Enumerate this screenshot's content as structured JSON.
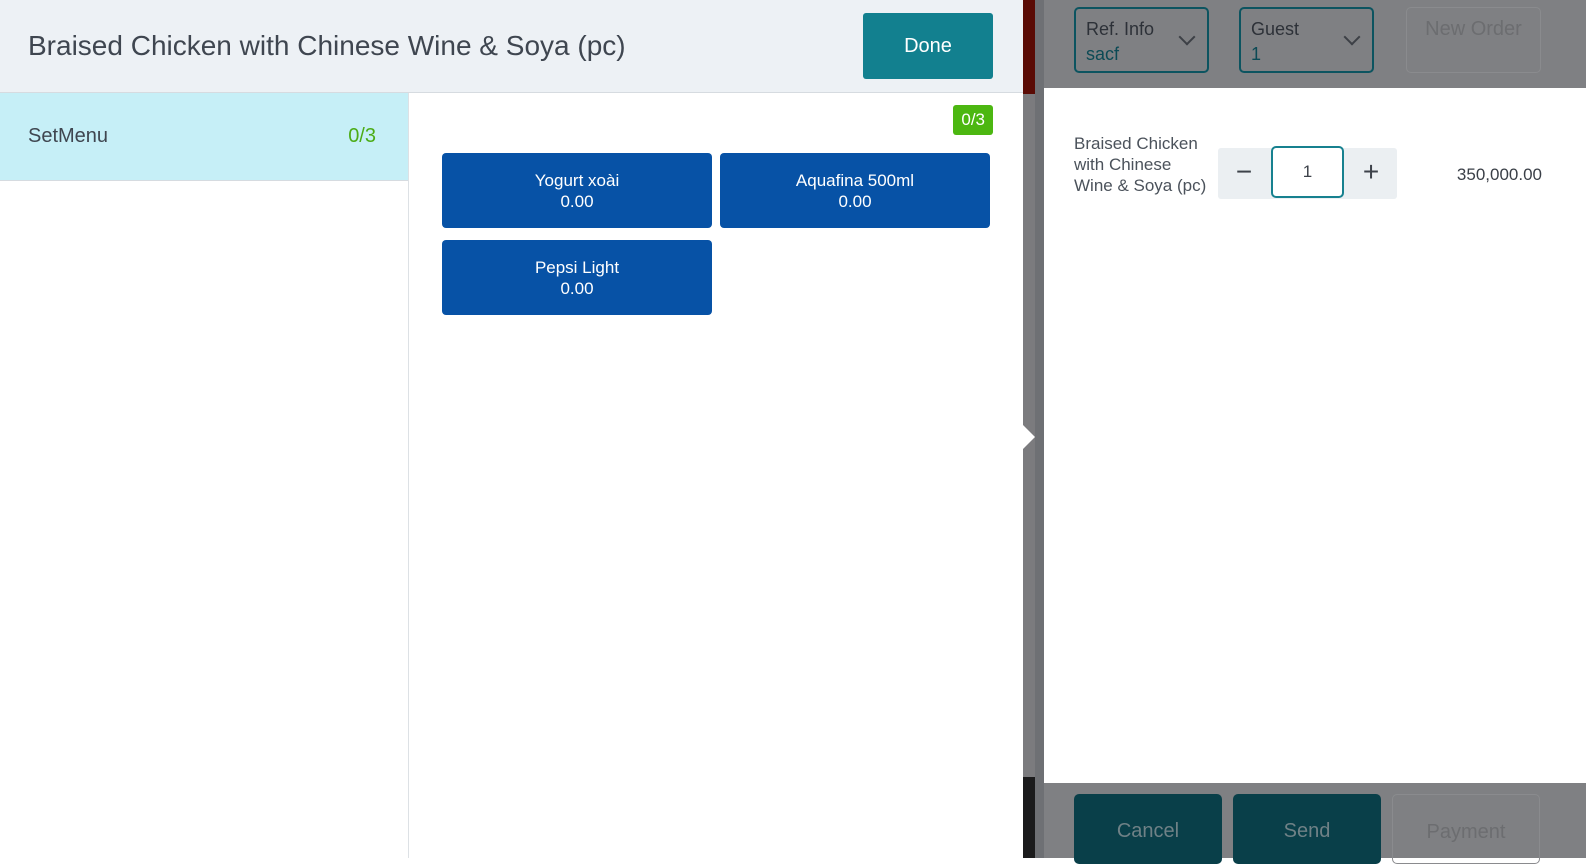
{
  "modal": {
    "title": "Braised Chicken with Chinese Wine & Soya (pc)",
    "done_label": "Done",
    "sidebar": [
      {
        "label": "SetMenu",
        "count": "0/3"
      }
    ],
    "selection_badge": "0/3",
    "items": [
      {
        "name": "Yogurt xoài",
        "price": "0.00"
      },
      {
        "name": "Aquafina 500ml",
        "price": "0.00"
      },
      {
        "name": "Pepsi Light",
        "price": "0.00"
      }
    ]
  },
  "order": {
    "ref_info": {
      "label": "Ref. Info",
      "value": "sacf"
    },
    "guest": {
      "label": "Guest",
      "value": "1"
    },
    "new_order_label": "New Order",
    "lines": [
      {
        "name": "Braised Chicken with Chinese Wine & Soya (pc)",
        "qty": "1",
        "price": "350,000.00"
      }
    ],
    "minus": "−",
    "plus": "+",
    "footer": {
      "cancel": "Cancel",
      "send": "Send",
      "payment": "Payment"
    }
  },
  "colors": {
    "accent": "#12808f",
    "item_button": "#0752a6",
    "badge": "#4cb711"
  }
}
